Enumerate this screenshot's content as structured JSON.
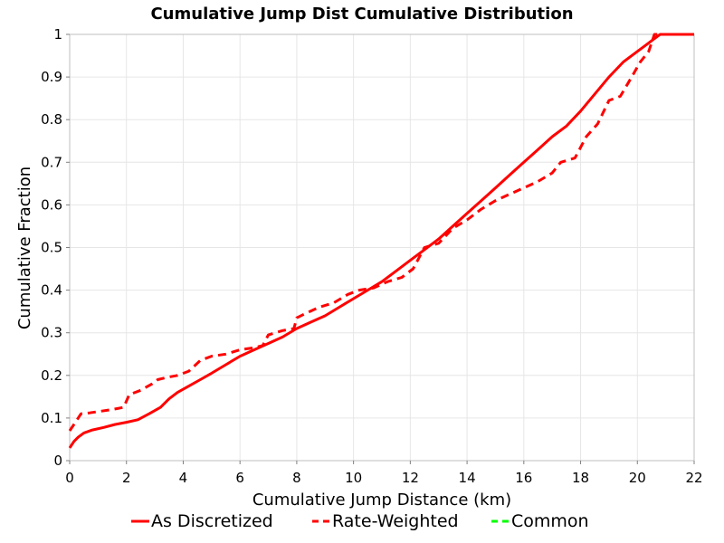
{
  "chart_data": {
    "type": "line",
    "title": "Cumulative Jump Dist Cumulative Distribution",
    "xlabel": "Cumulative Jump Distance (km)",
    "ylabel": "Cumulative Fraction",
    "xlim": [
      0,
      22
    ],
    "ylim": [
      0,
      1
    ],
    "xticks": [
      0,
      2,
      4,
      6,
      8,
      10,
      12,
      14,
      16,
      18,
      20,
      22
    ],
    "yticks": [
      0,
      0.1,
      0.2,
      0.3,
      0.4,
      0.5,
      0.6,
      0.7,
      0.8,
      0.9,
      1
    ],
    "xtick_labels": [
      "0",
      "2",
      "4",
      "6",
      "8",
      "10",
      "12",
      "14",
      "16",
      "18",
      "20",
      "22"
    ],
    "ytick_labels": [
      "0",
      "0.1",
      "0.2",
      "0.3",
      "0.4",
      "0.5",
      "0.6",
      "0.7",
      "0.8",
      "0.9",
      "1"
    ],
    "grid": true,
    "legend_position": "bottom",
    "series": [
      {
        "name": "As Discretized",
        "color": "#ff0000",
        "style": "solid",
        "x": [
          0,
          0.15,
          0.3,
          0.5,
          0.8,
          1.2,
          1.6,
          2.0,
          2.4,
          2.8,
          3.2,
          3.5,
          3.8,
          4.2,
          4.6,
          5.0,
          5.5,
          6.0,
          6.5,
          7.0,
          7.5,
          8.0,
          8.5,
          9.0,
          9.5,
          10.0,
          10.5,
          11.0,
          11.5,
          12.0,
          12.5,
          13.0,
          13.5,
          14.0,
          14.5,
          15.0,
          15.5,
          16.0,
          16.5,
          17.0,
          17.5,
          18.0,
          18.5,
          19.0,
          19.5,
          20.0,
          20.3,
          20.6,
          20.8,
          22
        ],
        "y": [
          0.03,
          0.045,
          0.055,
          0.065,
          0.072,
          0.078,
          0.085,
          0.09,
          0.096,
          0.11,
          0.125,
          0.145,
          0.16,
          0.175,
          0.19,
          0.205,
          0.225,
          0.245,
          0.26,
          0.275,
          0.29,
          0.31,
          0.325,
          0.34,
          0.36,
          0.38,
          0.4,
          0.42,
          0.445,
          0.47,
          0.495,
          0.52,
          0.55,
          0.58,
          0.61,
          0.64,
          0.67,
          0.7,
          0.73,
          0.76,
          0.785,
          0.82,
          0.86,
          0.9,
          0.935,
          0.96,
          0.975,
          0.99,
          1.0,
          1.0
        ]
      },
      {
        "name": "Rate-Weighted",
        "color": "#ff0000",
        "style": "dashed",
        "x": [
          0,
          0.2,
          0.4,
          0.7,
          1.0,
          1.5,
          1.9,
          2.1,
          2.5,
          2.9,
          3.1,
          3.4,
          3.8,
          4.2,
          4.6,
          5.0,
          5.5,
          6.0,
          6.5,
          6.8,
          7.0,
          7.5,
          7.9,
          8.0,
          8.3,
          8.8,
          9.3,
          9.8,
          10.2,
          10.7,
          11.2,
          11.7,
          12.1,
          12.5,
          13.0,
          13.5,
          14.0,
          14.5,
          15.0,
          15.5,
          16.0,
          16.5,
          17.0,
          17.3,
          17.8,
          18.2,
          18.6,
          19.0,
          19.4,
          19.8,
          20.1,
          20.4,
          20.6,
          22
        ],
        "y": [
          0.07,
          0.09,
          0.11,
          0.112,
          0.115,
          0.12,
          0.125,
          0.155,
          0.165,
          0.18,
          0.19,
          0.195,
          0.2,
          0.21,
          0.235,
          0.245,
          0.25,
          0.26,
          0.265,
          0.27,
          0.295,
          0.305,
          0.31,
          0.335,
          0.345,
          0.36,
          0.37,
          0.39,
          0.4,
          0.405,
          0.42,
          0.43,
          0.45,
          0.5,
          0.51,
          0.545,
          0.565,
          0.59,
          0.61,
          0.625,
          0.64,
          0.655,
          0.675,
          0.7,
          0.71,
          0.76,
          0.79,
          0.845,
          0.855,
          0.9,
          0.935,
          0.96,
          1.0,
          1.0
        ]
      },
      {
        "name": "Common",
        "color": "#00ff00",
        "style": "dashed",
        "x": [],
        "y": []
      }
    ]
  }
}
